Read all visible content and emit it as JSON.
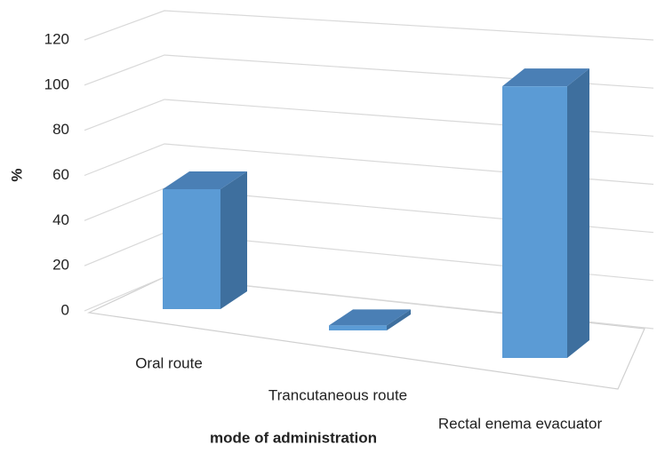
{
  "chart_data": {
    "type": "bar3d",
    "categories": [
      "Oral route",
      "Trancutaneous route",
      "Rectal enema evacuator"
    ],
    "values": [
      50,
      2,
      100
    ],
    "color": "#5b9bd5",
    "ylim": [
      0,
      120
    ],
    "yticks": [
      0,
      20,
      40,
      60,
      80,
      100,
      120
    ],
    "x_label": "mode of administration",
    "y_label": "%",
    "grid": true
  }
}
